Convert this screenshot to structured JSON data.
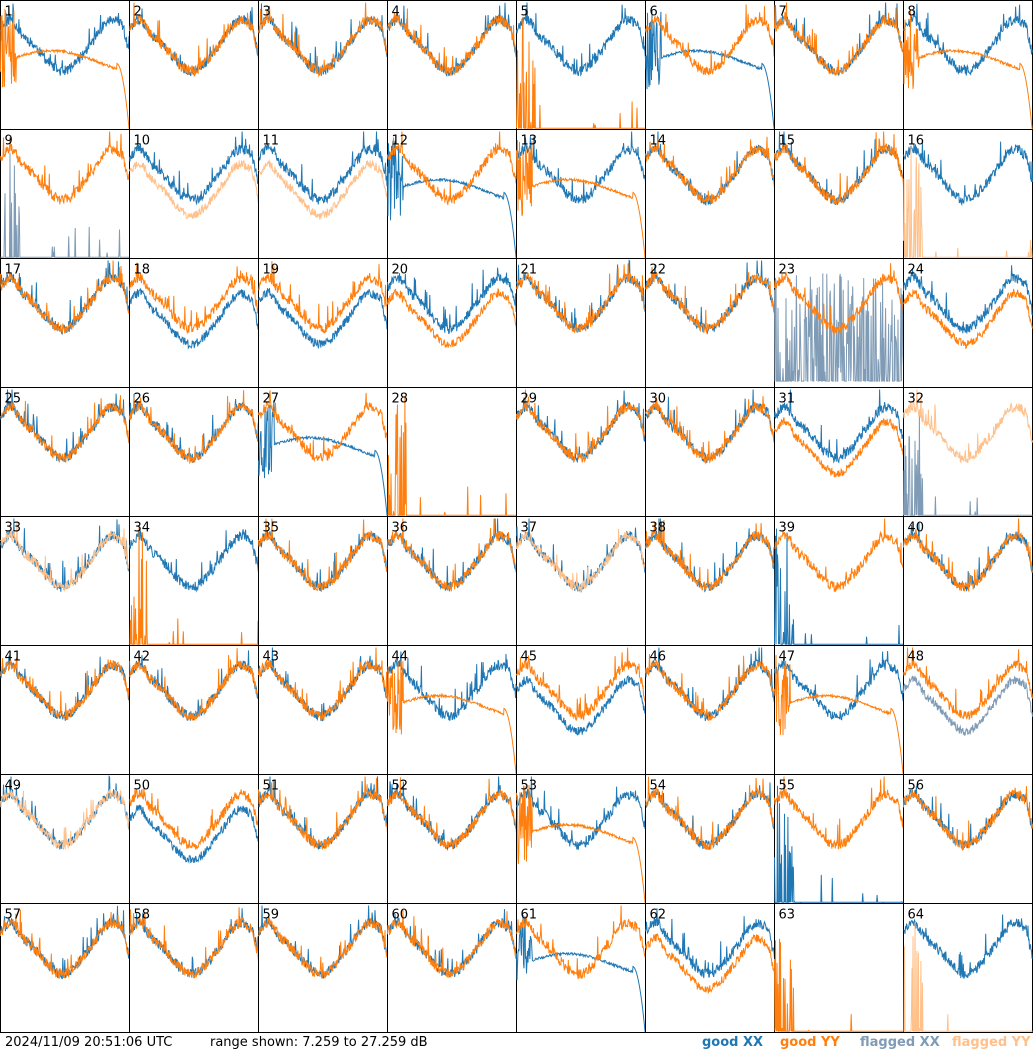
{
  "footer": {
    "timestamp": "2024/11/09 20:51:06 UTC",
    "range_text": "range shown: 7.259 to 27.259 dB"
  },
  "colors": {
    "good_xx": "#1f77b4",
    "good_yy": "#ff7f0e",
    "flagged_xx": "#7f9bb5",
    "flagged_yy": "#ffc08a"
  },
  "legend": [
    {
      "label": "good XX",
      "color_key": "good_xx"
    },
    {
      "label": "good YY",
      "color_key": "good_yy"
    },
    {
      "label": "flagged XX",
      "color_key": "flagged_xx"
    },
    {
      "label": "flagged YY",
      "color_key": "flagged_yy"
    }
  ],
  "chart_data": {
    "type": "line",
    "layout": "small-multiples 8x8",
    "range_db": [
      7.259,
      27.259
    ],
    "grid": false,
    "x_axis": "frequency channel (unlabeled)",
    "panels": [
      {
        "id": "1",
        "xx": "normal",
        "yy": "rolloff",
        "xx_flag": false,
        "yy_flag": false
      },
      {
        "id": "2",
        "xx": "normal",
        "yy": "normal",
        "xx_flag": false,
        "yy_flag": false
      },
      {
        "id": "3",
        "xx": "normal",
        "yy": "normal",
        "xx_flag": false,
        "yy_flag": false
      },
      {
        "id": "4",
        "xx": "normal",
        "yy": "normal",
        "xx_flag": false,
        "yy_flag": false
      },
      {
        "id": "5",
        "xx": "normal",
        "yy": "dead",
        "xx_flag": false,
        "yy_flag": false
      },
      {
        "id": "6",
        "xx": "rolloff",
        "yy": "normal",
        "xx_flag": false,
        "yy_flag": false
      },
      {
        "id": "7",
        "xx": "normal",
        "yy": "normal",
        "xx_flag": false,
        "yy_flag": false
      },
      {
        "id": "8",
        "xx": "normal",
        "yy": "rolloff",
        "xx_flag": false,
        "yy_flag": false
      },
      {
        "id": "9",
        "xx": "dead",
        "yy": "normal",
        "xx_flag": true,
        "yy_flag": false
      },
      {
        "id": "10",
        "xx": "normal",
        "yy": "low",
        "xx_flag": false,
        "yy_flag": true
      },
      {
        "id": "11",
        "xx": "normal",
        "yy": "low",
        "xx_flag": false,
        "yy_flag": true
      },
      {
        "id": "12",
        "xx": "rolloff",
        "yy": "normal",
        "xx_flag": false,
        "yy_flag": false
      },
      {
        "id": "13",
        "xx": "normal",
        "yy": "rolloff",
        "xx_flag": false,
        "yy_flag": false
      },
      {
        "id": "14",
        "xx": "normal",
        "yy": "normal",
        "xx_flag": false,
        "yy_flag": false
      },
      {
        "id": "15",
        "xx": "normal",
        "yy": "normal",
        "xx_flag": false,
        "yy_flag": false
      },
      {
        "id": "16",
        "xx": "normal",
        "yy": "dead",
        "xx_flag": false,
        "yy_flag": true
      },
      {
        "id": "17",
        "xx": "normal",
        "yy": "normal",
        "xx_flag": false,
        "yy_flag": false
      },
      {
        "id": "18",
        "xx": "low",
        "yy": "normal",
        "xx_flag": false,
        "yy_flag": false
      },
      {
        "id": "19",
        "xx": "low",
        "yy": "normal",
        "xx_flag": false,
        "yy_flag": false
      },
      {
        "id": "20",
        "xx": "normal",
        "yy": "low",
        "xx_flag": false,
        "yy_flag": false
      },
      {
        "id": "21",
        "xx": "normal",
        "yy": "normal",
        "xx_flag": false,
        "yy_flag": false
      },
      {
        "id": "22",
        "xx": "normal",
        "yy": "normal",
        "xx_flag": false,
        "yy_flag": false
      },
      {
        "id": "23",
        "xx": "spiky",
        "yy": "normal",
        "xx_flag": true,
        "yy_flag": false
      },
      {
        "id": "24",
        "xx": "normal",
        "yy": "low",
        "xx_flag": false,
        "yy_flag": false
      },
      {
        "id": "25",
        "xx": "normal",
        "yy": "normal",
        "xx_flag": false,
        "yy_flag": false
      },
      {
        "id": "26",
        "xx": "normal",
        "yy": "normal",
        "xx_flag": false,
        "yy_flag": false
      },
      {
        "id": "27",
        "xx": "rolloff",
        "yy": "normal",
        "xx_flag": false,
        "yy_flag": false
      },
      {
        "id": "28",
        "xx": "none",
        "yy": "dead",
        "xx_flag": false,
        "yy_flag": false
      },
      {
        "id": "29",
        "xx": "normal",
        "yy": "normal",
        "xx_flag": false,
        "yy_flag": false
      },
      {
        "id": "30",
        "xx": "normal",
        "yy": "normal",
        "xx_flag": false,
        "yy_flag": false
      },
      {
        "id": "31",
        "xx": "normal",
        "yy": "low",
        "xx_flag": false,
        "yy_flag": false
      },
      {
        "id": "32",
        "xx": "dead",
        "yy": "normal",
        "xx_flag": true,
        "yy_flag": true
      },
      {
        "id": "33",
        "xx": "normal",
        "yy": "normal",
        "xx_flag": false,
        "yy_flag": true
      },
      {
        "id": "34",
        "xx": "normal",
        "yy": "dead",
        "xx_flag": false,
        "yy_flag": false
      },
      {
        "id": "35",
        "xx": "normal",
        "yy": "normal",
        "xx_flag": false,
        "yy_flag": false
      },
      {
        "id": "36",
        "xx": "normal",
        "yy": "normal",
        "xx_flag": false,
        "yy_flag": false
      },
      {
        "id": "37",
        "xx": "normal",
        "yy": "normal",
        "xx_flag": false,
        "yy_flag": true
      },
      {
        "id": "38",
        "xx": "normal",
        "yy": "normal",
        "xx_flag": false,
        "yy_flag": false
      },
      {
        "id": "39",
        "xx": "dead",
        "yy": "normal",
        "xx_flag": false,
        "yy_flag": false
      },
      {
        "id": "40",
        "xx": "normal",
        "yy": "normal",
        "xx_flag": false,
        "yy_flag": false
      },
      {
        "id": "41",
        "xx": "normal",
        "yy": "normal",
        "xx_flag": false,
        "yy_flag": false
      },
      {
        "id": "42",
        "xx": "normal",
        "yy": "normal",
        "xx_flag": false,
        "yy_flag": false
      },
      {
        "id": "43",
        "xx": "normal",
        "yy": "normal",
        "xx_flag": false,
        "yy_flag": false
      },
      {
        "id": "44",
        "xx": "normal",
        "yy": "rolloff",
        "xx_flag": false,
        "yy_flag": false
      },
      {
        "id": "45",
        "xx": "low",
        "yy": "normal",
        "xx_flag": false,
        "yy_flag": false
      },
      {
        "id": "46",
        "xx": "normal",
        "yy": "normal",
        "xx_flag": false,
        "yy_flag": false
      },
      {
        "id": "47",
        "xx": "normal",
        "yy": "rolloff",
        "xx_flag": false,
        "yy_flag": false
      },
      {
        "id": "48",
        "xx": "low",
        "yy": "normal",
        "xx_flag": true,
        "yy_flag": false
      },
      {
        "id": "49",
        "xx": "normal",
        "yy": "normal",
        "xx_flag": false,
        "yy_flag": true
      },
      {
        "id": "50",
        "xx": "low",
        "yy": "normal",
        "xx_flag": false,
        "yy_flag": false
      },
      {
        "id": "51",
        "xx": "normal",
        "yy": "normal",
        "xx_flag": false,
        "yy_flag": false
      },
      {
        "id": "52",
        "xx": "normal",
        "yy": "normal",
        "xx_flag": false,
        "yy_flag": false
      },
      {
        "id": "53",
        "xx": "normal",
        "yy": "rolloff",
        "xx_flag": false,
        "yy_flag": false
      },
      {
        "id": "54",
        "xx": "normal",
        "yy": "normal",
        "xx_flag": false,
        "yy_flag": false
      },
      {
        "id": "55",
        "xx": "dead",
        "yy": "normal",
        "xx_flag": false,
        "yy_flag": false
      },
      {
        "id": "56",
        "xx": "normal",
        "yy": "normal",
        "xx_flag": false,
        "yy_flag": false
      },
      {
        "id": "57",
        "xx": "normal",
        "yy": "normal",
        "xx_flag": false,
        "yy_flag": false
      },
      {
        "id": "58",
        "xx": "normal",
        "yy": "normal",
        "xx_flag": false,
        "yy_flag": false
      },
      {
        "id": "59",
        "xx": "normal",
        "yy": "normal",
        "xx_flag": false,
        "yy_flag": false
      },
      {
        "id": "60",
        "xx": "normal",
        "yy": "normal",
        "xx_flag": false,
        "yy_flag": false
      },
      {
        "id": "61",
        "xx": "rolloff",
        "yy": "normal",
        "xx_flag": false,
        "yy_flag": false
      },
      {
        "id": "62",
        "xx": "normal",
        "yy": "low",
        "xx_flag": false,
        "yy_flag": false
      },
      {
        "id": "63",
        "xx": "none",
        "yy": "dead",
        "xx_flag": false,
        "yy_flag": false
      },
      {
        "id": "64",
        "xx": "normal",
        "yy": "dead",
        "xx_flag": false,
        "yy_flag": true
      }
    ]
  }
}
